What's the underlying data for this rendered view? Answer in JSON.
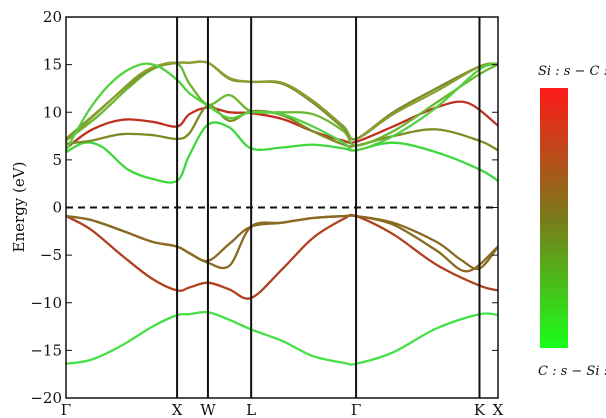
{
  "chart_data": {
    "type": "line",
    "ylabel": "Energy (eV)",
    "ylim": [
      -20,
      20
    ],
    "yticks": [
      -20,
      -15,
      -10,
      -5,
      0,
      5,
      10,
      15,
      20
    ],
    "xlim": [
      0,
      7
    ],
    "kpoints": [
      {
        "label": "Γ",
        "x": 0
      },
      {
        "label": "X",
        "x": 1.8
      },
      {
        "label": "W",
        "x": 2.3
      },
      {
        "label": "L",
        "x": 3.0
      },
      {
        "label": "Γ",
        "x": 4.7
      },
      {
        "label": "K",
        "x": 6.7
      },
      {
        "label": "X",
        "x": 7.0
      }
    ],
    "fermi_level": 0,
    "colorbar": {
      "top_label": "Si : s − C : p",
      "bottom_label": "C : s − Si : p",
      "top_color": "#ff1a1a",
      "bottom_color": "#1aff1a",
      "mid_color": "#7a7a1a"
    },
    "series": [
      {
        "color": "#44e044",
        "x": [
          0,
          0.4,
          0.9,
          1.4,
          1.8,
          2.0,
          2.3,
          2.65,
          3.0,
          3.5,
          4.0,
          4.5,
          4.7,
          5.3,
          6.0,
          6.7,
          7.0
        ],
        "y": [
          -16.4,
          -16.0,
          -14.5,
          -12.5,
          -11.3,
          -11.2,
          -11.0,
          -11.8,
          -12.8,
          -14.0,
          -15.6,
          -16.3,
          -16.4,
          -15.2,
          -12.7,
          -11.2,
          -11.3
        ]
      },
      {
        "color": "#b04020",
        "x": [
          0,
          0.4,
          0.9,
          1.4,
          1.8,
          2.0,
          2.3,
          2.65,
          3.0,
          3.5,
          4.0,
          4.5,
          4.7,
          5.3,
          6.0,
          6.7,
          7.0
        ],
        "y": [
          -0.9,
          -2.3,
          -5.0,
          -7.5,
          -8.7,
          -8.4,
          -7.9,
          -8.6,
          -9.5,
          -6.5,
          -3.2,
          -1.2,
          -0.9,
          -2.8,
          -6.0,
          -8.2,
          -8.7
        ]
      },
      {
        "color": "#8a6a22",
        "x": [
          0,
          0.4,
          0.9,
          1.4,
          1.8,
          2.0,
          2.3,
          2.65,
          3.0,
          3.5,
          4.0,
          4.5,
          4.7,
          5.3,
          6.0,
          6.4,
          6.7,
          7.0
        ],
        "y": [
          -0.9,
          -1.3,
          -2.4,
          -3.6,
          -4.1,
          -4.8,
          -5.6,
          -3.8,
          -2.0,
          -1.6,
          -1.1,
          -0.9,
          -0.9,
          -1.6,
          -3.6,
          -5.5,
          -6.4,
          -4.1
        ]
      },
      {
        "color": "#8a6a22",
        "x": [
          0,
          0.4,
          0.9,
          1.4,
          1.8,
          2.0,
          2.3,
          2.65,
          3.0,
          3.5,
          4.0,
          4.5,
          4.7,
          5.3,
          6.0,
          6.5,
          7.0
        ],
        "y": [
          -0.9,
          -1.3,
          -2.4,
          -3.6,
          -4.1,
          -4.8,
          -5.8,
          -6.1,
          -2.0,
          -1.6,
          -1.1,
          -0.9,
          -0.9,
          -1.8,
          -4.5,
          -6.7,
          -4.1
        ]
      },
      {
        "color": "#3ed83e",
        "x": [
          0,
          0.3,
          0.6,
          1.0,
          1.4,
          1.8,
          2.0,
          2.3,
          2.65,
          3.0,
          3.5,
          4.0,
          4.5,
          4.7,
          5.3,
          6.0,
          6.7,
          7.0
        ],
        "y": [
          5.8,
          6.8,
          6.3,
          4.0,
          3.0,
          2.8,
          5.5,
          8.7,
          8.4,
          6.2,
          6.3,
          6.6,
          6.2,
          6.0,
          6.8,
          5.8,
          4.0,
          2.8
        ]
      },
      {
        "color": "#c03020",
        "x": [
          0,
          0.4,
          0.9,
          1.4,
          1.8,
          2.0,
          2.3,
          2.65,
          3.0,
          3.5,
          4.0,
          4.5,
          4.7,
          5.3,
          6.0,
          6.5,
          7.0
        ],
        "y": [
          6.2,
          8.1,
          9.2,
          9.0,
          8.5,
          9.8,
          10.5,
          10.0,
          9.9,
          9.3,
          8.0,
          7.0,
          6.9,
          8.5,
          10.5,
          11.0,
          8.6
        ]
      },
      {
        "color": "#7e8a22",
        "x": [
          0,
          0.4,
          0.9,
          1.4,
          1.8,
          2.0,
          2.3,
          2.65,
          3.0,
          3.5,
          4.0,
          4.5,
          4.7,
          5.3,
          6.0,
          6.7,
          7.0
        ],
        "y": [
          6.7,
          7.0,
          7.7,
          7.6,
          7.2,
          7.8,
          10.7,
          9.1,
          10.1,
          9.7,
          8.0,
          6.6,
          6.5,
          7.5,
          8.2,
          7.0,
          6.0
        ]
      },
      {
        "color": "#6ab830",
        "x": [
          0,
          0.5,
          1.0,
          1.4,
          1.8,
          2.0,
          2.3,
          2.65,
          3.0,
          3.5,
          4.0,
          4.5,
          4.7,
          5.3,
          6.0,
          6.7,
          7.0
        ],
        "y": [
          7.0,
          9.5,
          12.5,
          14.5,
          15.1,
          13.0,
          10.8,
          11.8,
          10.1,
          10.0,
          9.8,
          8.0,
          6.5,
          8.0,
          11.0,
          14.0,
          15.0
        ]
      },
      {
        "color": "#7a8a28",
        "x": [
          0,
          0.5,
          1.0,
          1.4,
          1.8,
          2.0,
          2.3,
          2.65,
          3.0,
          3.5,
          4.0,
          4.5,
          4.7,
          5.3,
          6.0,
          6.7,
          7.0
        ],
        "y": [
          7.2,
          10.0,
          12.8,
          14.6,
          15.2,
          15.2,
          15.2,
          13.5,
          13.2,
          13.0,
          11.0,
          8.3,
          7.2,
          10.0,
          12.5,
          14.8,
          15.1
        ]
      },
      {
        "color": "#8aa030",
        "x": [
          0,
          0.6,
          1.2,
          1.6,
          1.8,
          2.0,
          2.3,
          2.65,
          3.0,
          3.5,
          4.0,
          4.5,
          4.7,
          5.3,
          6.0,
          6.7,
          7.0
        ],
        "y": [
          7.0,
          10.5,
          14.0,
          15.1,
          15.2,
          15.2,
          15.2,
          13.6,
          13.2,
          13.1,
          11.2,
          8.5,
          7.2,
          9.8,
          12.2,
          14.8,
          15.1
        ]
      },
      {
        "color": "#55d040",
        "x": [
          0,
          0.4,
          0.8,
          1.2,
          1.5,
          1.8,
          2.0,
          2.3,
          2.65,
          3.0,
          3.5,
          4.0,
          4.5,
          4.7,
          5.3,
          6.0,
          6.7,
          7.0
        ],
        "y": [
          6.0,
          10.5,
          13.5,
          15.0,
          14.8,
          13.4,
          12.0,
          10.7,
          9.4,
          10.0,
          9.8,
          8.5,
          6.8,
          6.0,
          7.5,
          10.5,
          14.5,
          15.0
        ]
      }
    ]
  }
}
